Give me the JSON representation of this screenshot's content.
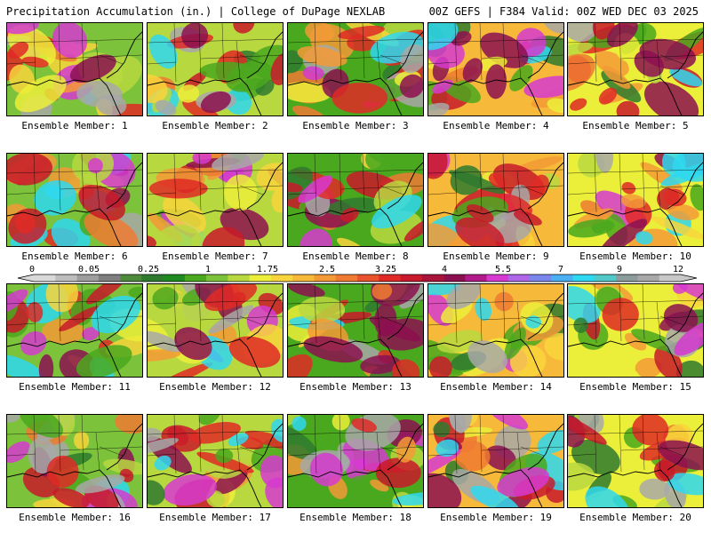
{
  "header": {
    "title": "Precipitation Accumulation (in.) | College of DuPage NEXLAB",
    "valid": "00Z GEFS | F384 Valid: 00Z WED DEC 03 2025"
  },
  "colorbar": {
    "labels": [
      "0",
      "0.05",
      "0.25",
      "1",
      "1.75",
      "2.5",
      "3.25",
      "4",
      "5.5",
      "7",
      "9",
      "12"
    ],
    "colors": [
      "#d9d9d9",
      "#bdbdbd",
      "#9e9e9e",
      "#7f7f7f",
      "#4e8a3c",
      "#2f7a2f",
      "#1f8a1f",
      "#4aa81e",
      "#7cc23a",
      "#b8d840",
      "#ecef3a",
      "#f8d53c",
      "#f6b93a",
      "#f39a36",
      "#ef7a32",
      "#e8522c",
      "#df2a26",
      "#c81a2a",
      "#a8143a",
      "#8c1050",
      "#b01a8a",
      "#d63ad0",
      "#b066e8",
      "#7a86ee",
      "#4ab0f2",
      "#2ed8f0",
      "#52c8c8",
      "#8c9c9c",
      "#a8a8a8",
      "#c8c8c8"
    ]
  },
  "members": [
    {
      "label": "Ensemble Member: 1"
    },
    {
      "label": "Ensemble Member: 2"
    },
    {
      "label": "Ensemble Member: 3"
    },
    {
      "label": "Ensemble Member: 4"
    },
    {
      "label": "Ensemble Member: 5"
    },
    {
      "label": "Ensemble Member: 6"
    },
    {
      "label": "Ensemble Member: 7"
    },
    {
      "label": "Ensemble Member: 8"
    },
    {
      "label": "Ensemble Member: 9"
    },
    {
      "label": "Ensemble Member: 10"
    },
    {
      "label": "Ensemble Member: 11"
    },
    {
      "label": "Ensemble Member: 12"
    },
    {
      "label": "Ensemble Member: 13"
    },
    {
      "label": "Ensemble Member: 14"
    },
    {
      "label": "Ensemble Member: 15"
    },
    {
      "label": "Ensemble Member: 16"
    },
    {
      "label": "Ensemble Member: 17"
    },
    {
      "label": "Ensemble Member: 18"
    },
    {
      "label": "Ensemble Member: 19"
    },
    {
      "label": "Ensemble Member: 20"
    }
  ]
}
